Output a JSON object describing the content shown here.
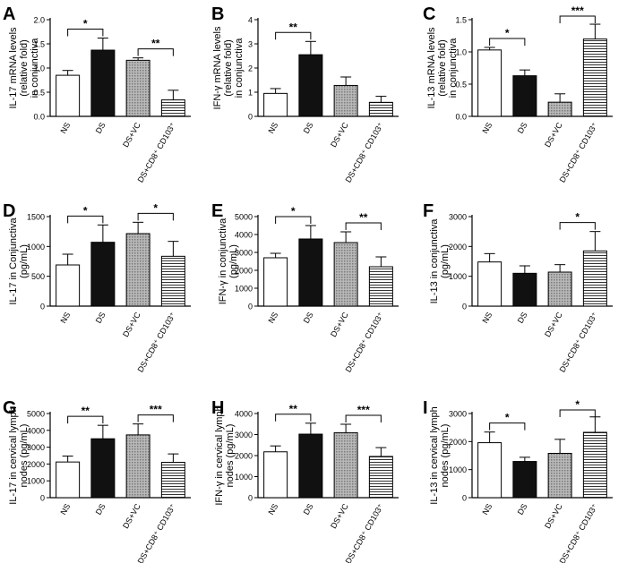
{
  "figure": {
    "categories": [
      "NS",
      "DS",
      "DS+VC",
      "DS+CD8⁺ CD103⁺"
    ]
  },
  "chart_data": [
    {
      "panel": "A",
      "type": "bar",
      "ylabel": "IL-17 mRNA levels (relative fold) in conjunctiva",
      "categories": [
        "NS",
        "DS",
        "DS+VC",
        "DS+CD8⁺ CD103⁺"
      ],
      "values": [
        0.85,
        1.37,
        1.16,
        0.34
      ],
      "errors": [
        0.1,
        0.25,
        0.05,
        0.2
      ],
      "ylim": [
        0,
        2.0
      ],
      "yticks": [
        "0.0",
        "0.5",
        "1.0",
        "1.5",
        "2.0"
      ],
      "significance": [
        {
          "from": 0,
          "to": 1,
          "label": "*"
        },
        {
          "from": 2,
          "to": 3,
          "label": "**"
        }
      ]
    },
    {
      "panel": "B",
      "type": "bar",
      "ylabel": "IFN-γ mRNA levels (relative fold) in conjunctiva",
      "categories": [
        "NS",
        "DS",
        "DS+VC",
        "DS+CD8⁺ CD103⁺"
      ],
      "values": [
        0.95,
        2.55,
        1.28,
        0.58
      ],
      "errors": [
        0.2,
        0.55,
        0.35,
        0.25
      ],
      "ylim": [
        0,
        4
      ],
      "yticks": [
        "0",
        "1",
        "2",
        "3",
        "4"
      ],
      "significance": [
        {
          "from": 0,
          "to": 1,
          "label": "**"
        }
      ]
    },
    {
      "panel": "C",
      "type": "bar",
      "ylabel": "IL-13 mRNA levels (relative fold) in conjunctiva",
      "categories": [
        "NS",
        "DS",
        "DS+VC",
        "DS+CD8⁺ CD103⁺"
      ],
      "values": [
        1.03,
        0.63,
        0.22,
        1.2
      ],
      "errors": [
        0.04,
        0.09,
        0.13,
        0.23
      ],
      "ylim": [
        0,
        1.5
      ],
      "yticks": [
        "0.0",
        "0.5",
        "1.0",
        "1.5"
      ],
      "significance": [
        {
          "from": 0,
          "to": 1,
          "label": "*"
        },
        {
          "from": 2,
          "to": 3,
          "label": "***"
        }
      ]
    },
    {
      "panel": "D",
      "type": "bar",
      "ylabel": "IL-17 in Conjunctiva (pg/mL)",
      "categories": [
        "NS",
        "DS",
        "DS+VC",
        "DS+CD8⁺ CD103⁺"
      ],
      "values": [
        690,
        1070,
        1215,
        835
      ],
      "errors": [
        180,
        290,
        190,
        250
      ],
      "ylim": [
        0,
        1500
      ],
      "yticks": [
        "0",
        "500",
        "1000",
        "1500"
      ],
      "significance": [
        {
          "from": 0,
          "to": 1,
          "label": "*"
        },
        {
          "from": 2,
          "to": 3,
          "label": "*"
        }
      ]
    },
    {
      "panel": "E",
      "type": "bar",
      "ylabel": "IFN-γ in conjunctiva (pg/mL)",
      "categories": [
        "NS",
        "DS",
        "DS+VC",
        "DS+CD8⁺ CD103⁺"
      ],
      "values": [
        2700,
        3750,
        3550,
        2200
      ],
      "errors": [
        250,
        750,
        600,
        550
      ],
      "ylim": [
        0,
        5000
      ],
      "yticks": [
        "0",
        "1000",
        "2000",
        "3000",
        "4000",
        "5000"
      ],
      "significance": [
        {
          "from": 0,
          "to": 1,
          "label": "*"
        },
        {
          "from": 2,
          "to": 3,
          "label": "**"
        }
      ]
    },
    {
      "panel": "F",
      "type": "bar",
      "ylabel": "IL-13 in conjunctiva (pg/mL)",
      "categories": [
        "NS",
        "DS",
        "DS+VC",
        "DS+CD8⁺ CD103⁺"
      ],
      "values": [
        1480,
        1100,
        1140,
        1850
      ],
      "errors": [
        280,
        250,
        250,
        650
      ],
      "ylim": [
        0,
        3000
      ],
      "yticks": [
        "0",
        "1000",
        "2000",
        "3000"
      ],
      "significance": [
        {
          "from": 2,
          "to": 3,
          "label": "*"
        }
      ]
    },
    {
      "panel": "G",
      "type": "bar",
      "ylabel": "IL-17 in cervical lymph nodes (pg/mL)",
      "categories": [
        "NS",
        "DS",
        "DS+VC",
        "DS+CD8⁺ CD103⁺"
      ],
      "values": [
        2120,
        3500,
        3730,
        2100
      ],
      "errors": [
        350,
        800,
        650,
        500
      ],
      "ylim": [
        0,
        5000
      ],
      "yticks": [
        "0",
        "1000",
        "2000",
        "3000",
        "4000",
        "5000"
      ],
      "significance": [
        {
          "from": 0,
          "to": 1,
          "label": "**"
        },
        {
          "from": 2,
          "to": 3,
          "label": "***"
        }
      ]
    },
    {
      "panel": "H",
      "type": "bar",
      "ylabel": "IFN-γ in cervical lymph nodes (pg/mL)",
      "categories": [
        "NS",
        "DS",
        "DS+VC",
        "DS+CD8⁺ CD103⁺"
      ],
      "values": [
        2180,
        3020,
        3090,
        1960
      ],
      "errors": [
        280,
        520,
        400,
        420
      ],
      "ylim": [
        0,
        4000
      ],
      "yticks": [
        "0",
        "1000",
        "2000",
        "3000",
        "4000"
      ],
      "significance": [
        {
          "from": 0,
          "to": 1,
          "label": "**"
        },
        {
          "from": 2,
          "to": 3,
          "label": "***"
        }
      ]
    },
    {
      "panel": "I",
      "type": "bar",
      "ylabel": "IL-13 in cervical lymph nodes (pg/mL)",
      "categories": [
        "NS",
        "DS",
        "DS+VC",
        "DS+CD8⁺ CD103⁺"
      ],
      "values": [
        1960,
        1290,
        1580,
        2330
      ],
      "errors": [
        380,
        150,
        500,
        550
      ],
      "ylim": [
        0,
        3000
      ],
      "yticks": [
        "0",
        "1000",
        "2000",
        "3000"
      ],
      "significance": [
        {
          "from": 0,
          "to": 1,
          "label": "*"
        },
        {
          "from": 2,
          "to": 3,
          "label": "*"
        }
      ]
    }
  ]
}
